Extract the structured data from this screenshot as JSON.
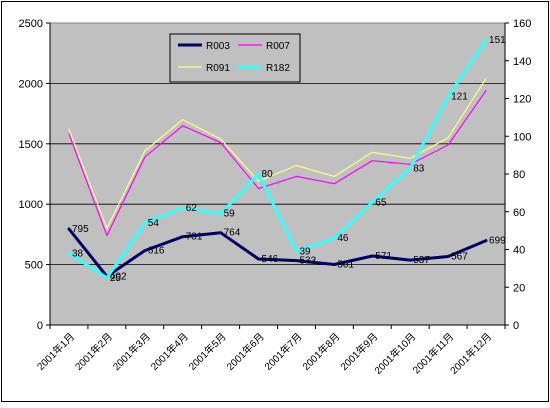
{
  "chart_data": {
    "type": "line",
    "title": "",
    "categories": [
      "2001年1月",
      "2001年2月",
      "2001年3月",
      "2001年4月",
      "2001年5月",
      "2001年6月",
      "2001年7月",
      "2001年8月",
      "2001年9月",
      "2001年10月",
      "2001年11月",
      "2001年12月"
    ],
    "y_left": {
      "min": 0,
      "max": 2500,
      "ticks": [
        "0",
        "500",
        "1000",
        "1500",
        "2000",
        "2500"
      ]
    },
    "y_right": {
      "min": 0,
      "max": 160,
      "ticks": [
        "0",
        "20",
        "40",
        "60",
        "80",
        "100",
        "120",
        "140",
        "160"
      ]
    },
    "plot_background": "#c0c0c0",
    "gridlines": true,
    "legend_position": "top-left-inside",
    "series": [
      {
        "name": "R003",
        "color": "#000066",
        "axis": "left",
        "width": 3,
        "values": [
          795,
          402,
          616,
          731,
          764,
          546,
          533,
          501,
          571,
          537,
          567,
          699
        ],
        "labels": [
          "795",
          "402",
          "616",
          "731",
          "764",
          "546",
          "533",
          "501",
          "571",
          "537",
          "567",
          "699"
        ]
      },
      {
        "name": "R007",
        "color": "#ff00ff",
        "axis": "left",
        "width": 1.2,
        "values": [
          1580,
          740,
          1390,
          1650,
          1510,
          1130,
          1230,
          1170,
          1360,
          1330,
          1490,
          1940
        ],
        "labels": []
      },
      {
        "name": "R091",
        "color": "#ffff80",
        "axis": "left",
        "width": 1.2,
        "values": [
          1620,
          800,
          1440,
          1700,
          1540,
          1190,
          1320,
          1230,
          1430,
          1380,
          1550,
          2040
        ],
        "labels": []
      },
      {
        "name": "R182",
        "color": "#33ffff",
        "axis": "right",
        "width": 3,
        "values": [
          38,
          25,
          54,
          62,
          59,
          80,
          39,
          46,
          65,
          83,
          121,
          151
        ],
        "labels": [
          "38",
          "25",
          "54",
          "62",
          "59",
          "80",
          "39",
          "46",
          "65",
          "83",
          "121",
          "151"
        ]
      }
    ]
  }
}
